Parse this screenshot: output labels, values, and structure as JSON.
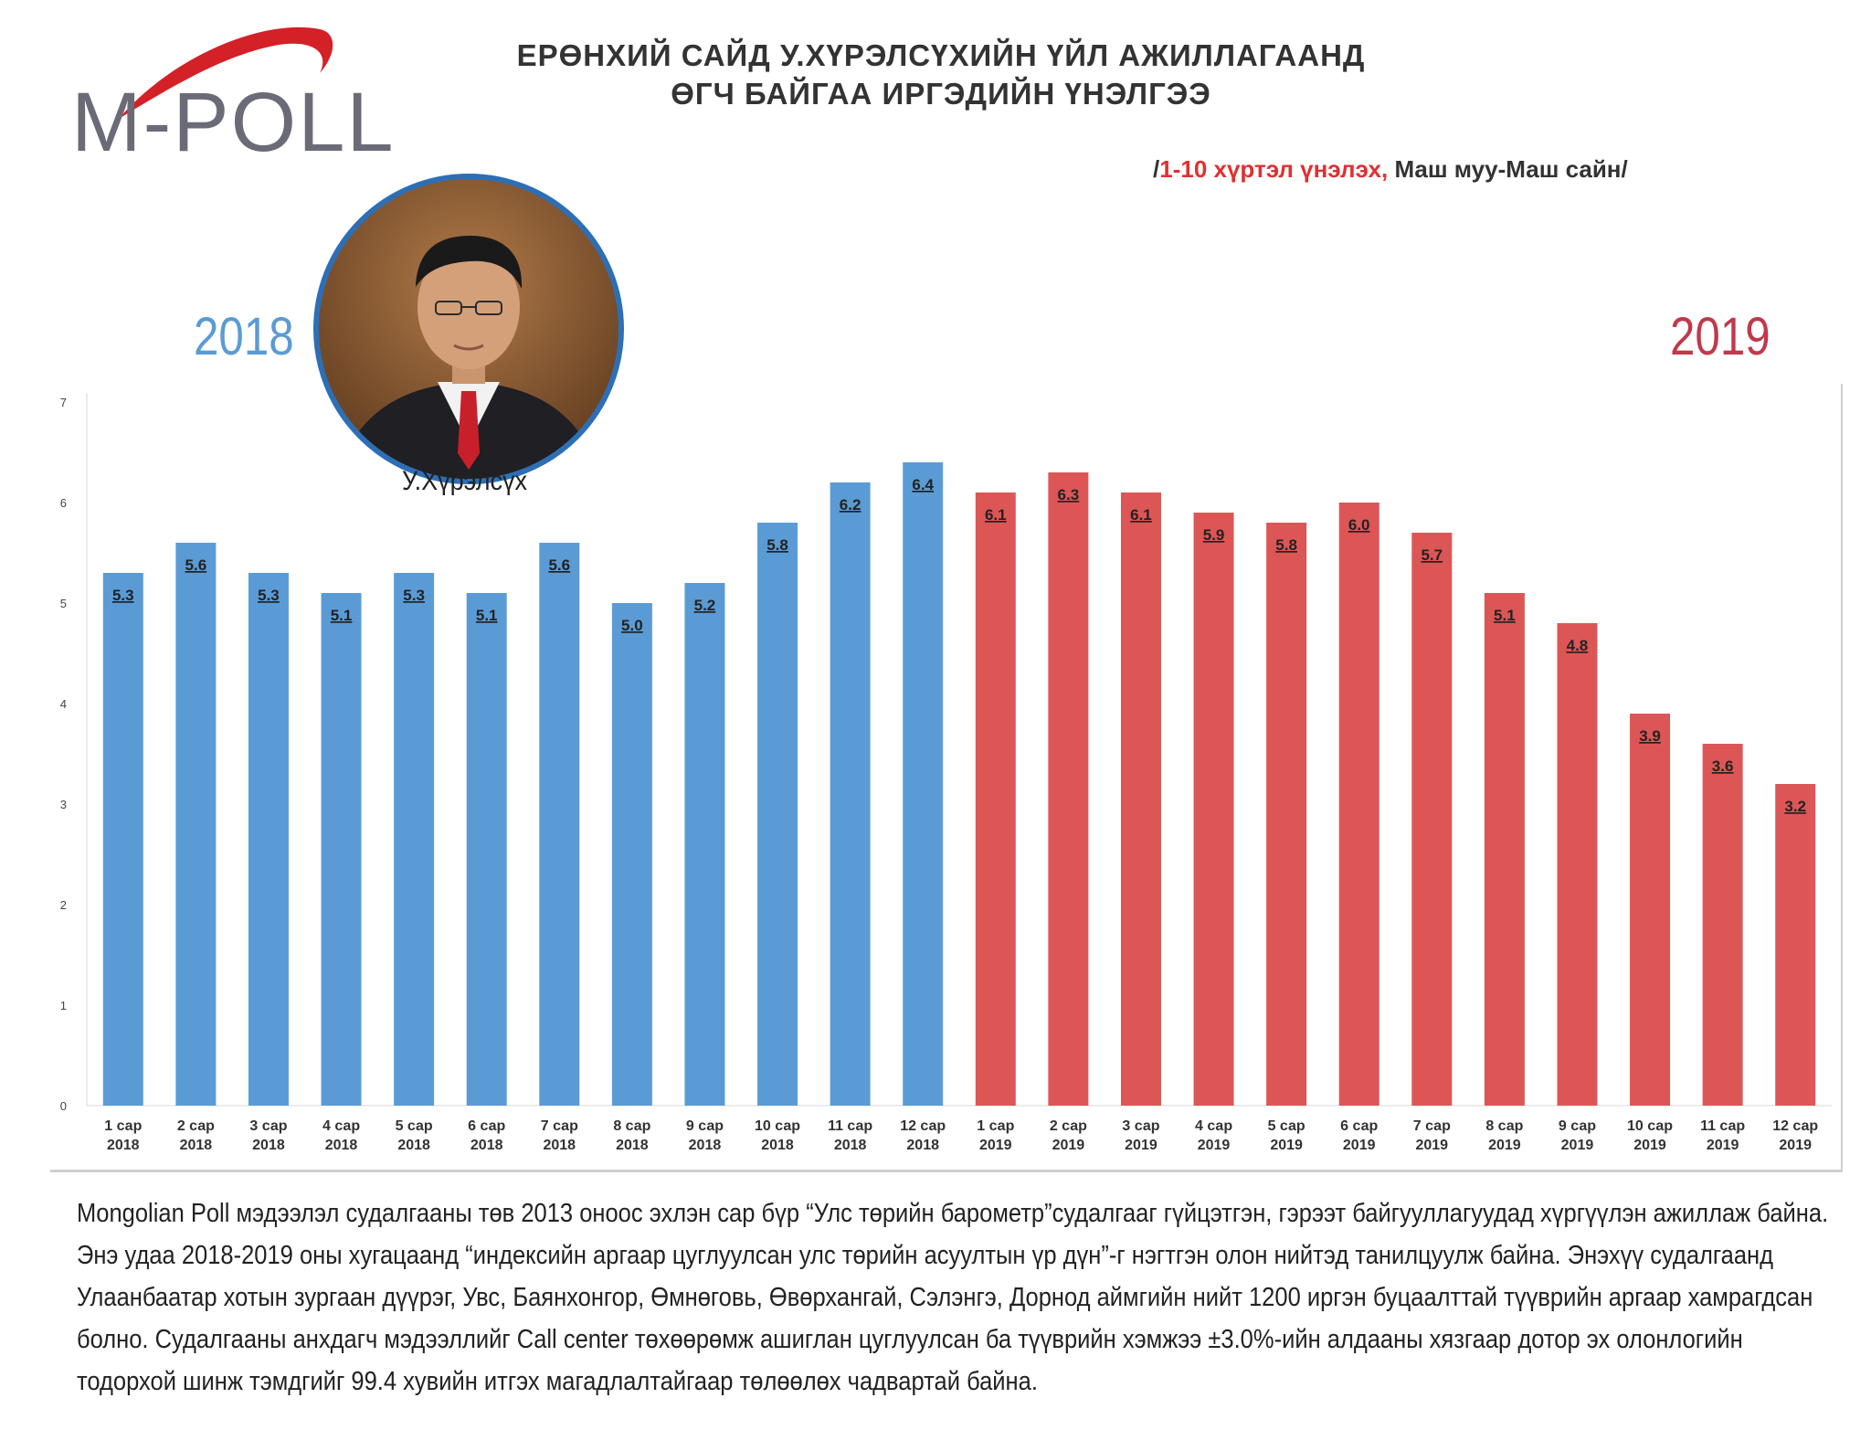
{
  "logo": {
    "text": "M-POLL"
  },
  "title": {
    "line1": "ЕРӨНХИЙ САЙД У.ХҮРЭЛСҮХИЙН ҮЙЛ АЖИЛЛАГААНД",
    "line2": "ӨГЧ БАЙГАА ИРГЭДИЙН ҮНЭЛГЭЭ"
  },
  "subtitle": {
    "open": "/",
    "red": "1-10 хүртэл үнэлэх,",
    "rest": " Маш муу-Маш сайн/"
  },
  "years": {
    "left": "2018",
    "right": "2019"
  },
  "portrait_caption": "У.Хүрэлсүх",
  "colors": {
    "series2018": "#5b9bd5",
    "series2019": "#dc5656"
  },
  "chart_data": {
    "type": "bar",
    "ylim": [
      0,
      7
    ],
    "yticks": [
      "0",
      "1",
      "2",
      "3",
      "4",
      "5",
      "6",
      "7"
    ],
    "categories": [
      [
        "1 сар",
        "2018"
      ],
      [
        "2 сар",
        "2018"
      ],
      [
        "3 сар",
        "2018"
      ],
      [
        "4 сар",
        "2018"
      ],
      [
        "5 сар",
        "2018"
      ],
      [
        "6 сар",
        "2018"
      ],
      [
        "7 сар",
        "2018"
      ],
      [
        "8 сар",
        "2018"
      ],
      [
        "9 сар",
        "2018"
      ],
      [
        "10 сар",
        "2018"
      ],
      [
        "11 сар",
        "2018"
      ],
      [
        "12 сар",
        "2018"
      ],
      [
        "1 сар",
        "2019"
      ],
      [
        "2 сар",
        "2019"
      ],
      [
        "3 сар",
        "2019"
      ],
      [
        "4 сар",
        "2019"
      ],
      [
        "5 сар",
        "2019"
      ],
      [
        "6 сар",
        "2019"
      ],
      [
        "7 сар",
        "2019"
      ],
      [
        "8 сар",
        "2019"
      ],
      [
        "9 сар",
        "2019"
      ],
      [
        "10 сар",
        "2019"
      ],
      [
        "11 сар",
        "2019"
      ],
      [
        "12 сар",
        "2019"
      ]
    ],
    "values": [
      5.3,
      5.6,
      5.3,
      5.1,
      5.3,
      5.1,
      5.6,
      5.0,
      5.2,
      5.8,
      6.2,
      6.4,
      6.1,
      6.3,
      6.1,
      5.9,
      5.8,
      6.0,
      5.7,
      5.1,
      4.8,
      3.9,
      3.6,
      3.2
    ],
    "labels": [
      "5.3",
      "5.6",
      "5.3",
      "5.1",
      "5.3",
      "5.1",
      "5.6",
      "5.0",
      "5.2",
      "5.8",
      "6.2",
      "6.4",
      "6.1",
      "6.3",
      "6.1",
      "5.9",
      "5.8",
      "6.0",
      "5.7",
      "5.1",
      "4.8",
      "3.9",
      "3.6",
      "3.2"
    ],
    "grid": false
  },
  "footnote": "Mongolian Poll мэдээлэл судалгааны төв 2013 оноос эхлэн сар бүр “Улс төрийн барометр”судалгааг гүйцэтгэн, гэрээт байгууллагуудад хүргүүлэн ажиллаж байна. Энэ удаа 2018-2019 оны хугацаанд “индексийн аргаар цуглуулсан улс төрийн асуултын үр дүн”-г нэгтгэн олон нийтэд танилцуулж байна.  Энэхүү судалгаанд Улаанбаатар хотын зургаан дүүрэг, Увс, Баянхонгор, Өмнөговь, Өвөрхангай, Сэлэнгэ, Дорнод аймгийн нийт 1200 иргэн буцаалттай түүврийн аргаар хамрагдсан болно. Судалгааны анхдагч мэдээллийг Call center төхөөрөмж ашиглан цуглуулсан ба түүврийн хэмжээ ±3.0%-ийн алдааны хязгаар дотор эх олонлогийн тодорхой шинж тэмдгийг 99.4 хувийн итгэх магадлалтайгаар төлөөлөх чадвартай байна."
}
